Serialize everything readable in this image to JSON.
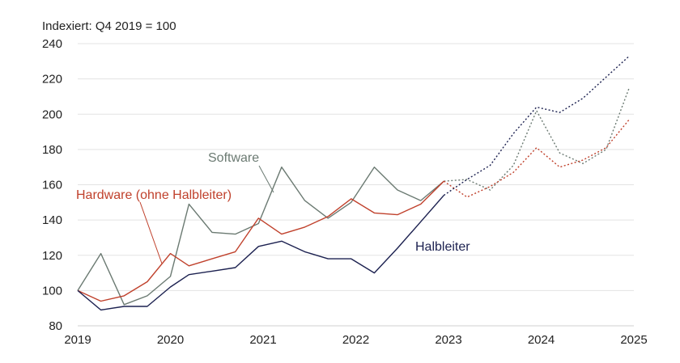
{
  "chart_data": {
    "type": "line",
    "title": "Indexiert: Q4 2019 = 100",
    "ylim": [
      80,
      240
    ],
    "yticks": [
      80,
      100,
      120,
      140,
      160,
      180,
      200,
      220,
      240
    ],
    "xlim": [
      2019,
      2025
    ],
    "xticks": [
      2019,
      2020,
      2021,
      2022,
      2023,
      2024,
      2025
    ],
    "grid": true,
    "legend": "inline labels",
    "series": [
      {
        "name": "Software",
        "color": "#6b7a72",
        "x": [
          2019.0,
          2019.25,
          2019.5,
          2019.75,
          2020.0,
          2020.2,
          2020.45,
          2020.7,
          2020.95,
          2021.2,
          2021.45,
          2021.7,
          2021.95,
          2022.2,
          2022.45,
          2022.7,
          2022.95
        ],
        "values": [
          100,
          121,
          92,
          97,
          108,
          149,
          133,
          132,
          138,
          170,
          151,
          141,
          150,
          170,
          157,
          151,
          162
        ],
        "forecast_x": [
          2022.95,
          2023.2,
          2023.45,
          2023.7,
          2023.95,
          2024.2,
          2024.45,
          2024.7,
          2024.95
        ],
        "forecast_values": [
          162,
          163,
          157,
          171,
          202,
          178,
          172,
          180,
          215
        ]
      },
      {
        "name": "Hardware (ohne Halbleiter)",
        "color": "#c0412c",
        "x": [
          2019.0,
          2019.25,
          2019.5,
          2019.75,
          2020.0,
          2020.2,
          2020.45,
          2020.7,
          2020.95,
          2021.2,
          2021.45,
          2021.7,
          2021.95,
          2022.2,
          2022.45,
          2022.7,
          2022.95
        ],
        "values": [
          100,
          94,
          97,
          105,
          121,
          114,
          118,
          122,
          141,
          132,
          136,
          142,
          152,
          144,
          143,
          149,
          162
        ],
        "forecast_x": [
          2022.95,
          2023.2,
          2023.45,
          2023.7,
          2023.95,
          2024.2,
          2024.45,
          2024.7,
          2024.95
        ],
        "forecast_values": [
          162,
          153,
          159,
          167,
          181,
          170,
          174,
          181,
          197
        ]
      },
      {
        "name": "Halbleiter",
        "color": "#1c2150",
        "x": [
          2019.0,
          2019.25,
          2019.5,
          2019.75,
          2020.0,
          2020.2,
          2020.45,
          2020.7,
          2020.95,
          2021.2,
          2021.45,
          2021.7,
          2021.95,
          2022.2,
          2022.45,
          2022.7,
          2022.95
        ],
        "values": [
          100,
          89,
          91,
          91,
          102,
          109,
          111,
          113,
          125,
          128,
          122,
          118,
          118,
          110,
          124,
          139,
          154
        ],
        "forecast_x": [
          2022.95,
          2023.2,
          2023.45,
          2023.7,
          2023.95,
          2024.2,
          2024.45,
          2024.7,
          2024.95
        ],
        "forecast_values": [
          154,
          163,
          171,
          189,
          204,
          201,
          209,
          221,
          233
        ]
      }
    ]
  }
}
